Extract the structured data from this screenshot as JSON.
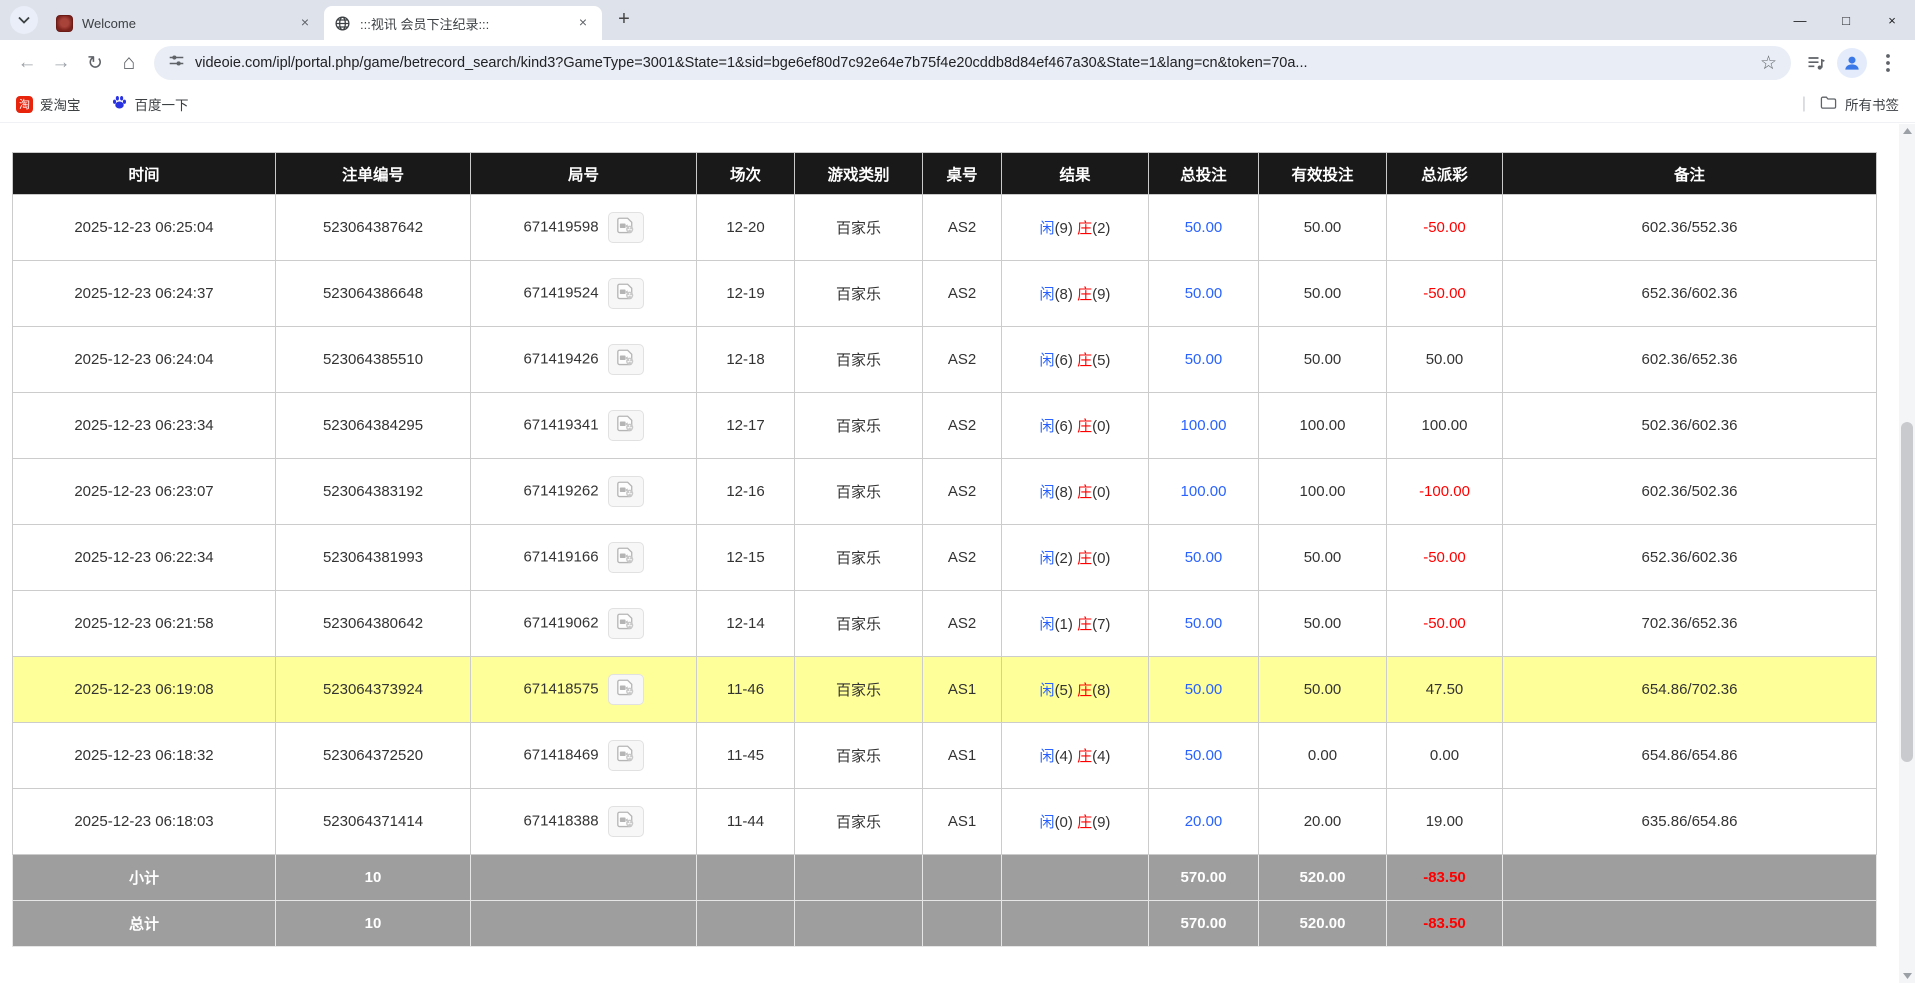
{
  "browser": {
    "tabs": [
      {
        "title": "Welcome"
      },
      {
        "title": ":::视讯 会员下注纪录:::"
      }
    ],
    "url": "videoie.com/ipl/portal.php/game/betrecord_search/kind3?GameType=3001&State=1&sid=bge6ef80d7c92e64e7b75f4e20cddb8d84ef467a30&State=1&lang=cn&token=70a...",
    "bookmarks": [
      {
        "label": "爱淘宝",
        "favicon_char": "淘"
      },
      {
        "label": "百度一下"
      }
    ],
    "all_bookmarks_label": "所有书签",
    "icons": {
      "back": "←",
      "forward": "→",
      "reload": "↻",
      "home": "⌂",
      "star": "☆",
      "close": "×",
      "new_tab": "+",
      "minimize": "—",
      "maximize": "□",
      "separator": "|"
    }
  },
  "table": {
    "headers": [
      "时间",
      "注单编号",
      "局号",
      "场次",
      "游戏类别",
      "桌号",
      "结果",
      "总投注",
      "有效投注",
      "总派彩",
      "备注"
    ],
    "result_labels": {
      "player": "闲",
      "banker": "庄"
    },
    "rows": [
      {
        "time": "2025-12-23 06:25:04",
        "bet_id": "523064387642",
        "round_id": "671419598",
        "session": "12-20",
        "game": "百家乐",
        "table": "AS2",
        "player_score": "(9)",
        "banker_score": "(2)",
        "total_bet": "50.00",
        "valid_bet": "50.00",
        "payout": "-50.00",
        "note": "602.36/552.36",
        "highlight": false
      },
      {
        "time": "2025-12-23 06:24:37",
        "bet_id": "523064386648",
        "round_id": "671419524",
        "session": "12-19",
        "game": "百家乐",
        "table": "AS2",
        "player_score": "(8)",
        "banker_score": "(9)",
        "total_bet": "50.00",
        "valid_bet": "50.00",
        "payout": "-50.00",
        "note": "652.36/602.36",
        "highlight": false
      },
      {
        "time": "2025-12-23 06:24:04",
        "bet_id": "523064385510",
        "round_id": "671419426",
        "session": "12-18",
        "game": "百家乐",
        "table": "AS2",
        "player_score": "(6)",
        "banker_score": "(5)",
        "total_bet": "50.00",
        "valid_bet": "50.00",
        "payout": "50.00",
        "note": "602.36/652.36",
        "highlight": false
      },
      {
        "time": "2025-12-23 06:23:34",
        "bet_id": "523064384295",
        "round_id": "671419341",
        "session": "12-17",
        "game": "百家乐",
        "table": "AS2",
        "player_score": "(6)",
        "banker_score": "(0)",
        "total_bet": "100.00",
        "valid_bet": "100.00",
        "payout": "100.00",
        "note": "502.36/602.36",
        "highlight": false
      },
      {
        "time": "2025-12-23 06:23:07",
        "bet_id": "523064383192",
        "round_id": "671419262",
        "session": "12-16",
        "game": "百家乐",
        "table": "AS2",
        "player_score": "(8)",
        "banker_score": "(0)",
        "total_bet": "100.00",
        "valid_bet": "100.00",
        "payout": "-100.00",
        "note": "602.36/502.36",
        "highlight": false
      },
      {
        "time": "2025-12-23 06:22:34",
        "bet_id": "523064381993",
        "round_id": "671419166",
        "session": "12-15",
        "game": "百家乐",
        "table": "AS2",
        "player_score": "(2)",
        "banker_score": "(0)",
        "total_bet": "50.00",
        "valid_bet": "50.00",
        "payout": "-50.00",
        "note": "652.36/602.36",
        "highlight": false
      },
      {
        "time": "2025-12-23 06:21:58",
        "bet_id": "523064380642",
        "round_id": "671419062",
        "session": "12-14",
        "game": "百家乐",
        "table": "AS2",
        "player_score": "(1)",
        "banker_score": "(7)",
        "total_bet": "50.00",
        "valid_bet": "50.00",
        "payout": "-50.00",
        "note": "702.36/652.36",
        "highlight": false
      },
      {
        "time": "2025-12-23 06:19:08",
        "bet_id": "523064373924",
        "round_id": "671418575",
        "session": "11-46",
        "game": "百家乐",
        "table": "AS1",
        "player_score": "(5)",
        "banker_score": "(8)",
        "total_bet": "50.00",
        "valid_bet": "50.00",
        "payout": "47.50",
        "note": "654.86/702.36",
        "highlight": true
      },
      {
        "time": "2025-12-23 06:18:32",
        "bet_id": "523064372520",
        "round_id": "671418469",
        "session": "11-45",
        "game": "百家乐",
        "table": "AS1",
        "player_score": "(4)",
        "banker_score": "(4)",
        "total_bet": "50.00",
        "valid_bet": "0.00",
        "payout": "0.00",
        "note": "654.86/654.86",
        "highlight": false
      },
      {
        "time": "2025-12-23 06:18:03",
        "bet_id": "523064371414",
        "round_id": "671418388",
        "session": "11-44",
        "game": "百家乐",
        "table": "AS1",
        "player_score": "(0)",
        "banker_score": "(9)",
        "total_bet": "20.00",
        "valid_bet": "20.00",
        "payout": "19.00",
        "note": "635.86/654.86",
        "highlight": false
      }
    ],
    "footer": [
      {
        "label": "小计",
        "count": "10",
        "total_bet": "570.00",
        "valid_bet": "520.00",
        "payout": "-83.50"
      },
      {
        "label": "总计",
        "count": "10",
        "total_bet": "570.00",
        "valid_bet": "520.00",
        "payout": "-83.50"
      }
    ]
  },
  "colors": {
    "accent_blue": "#2962FF",
    "negative_red": "#FF0000",
    "highlight_yellow": "#FFFF99",
    "header_black": "#191919",
    "footer_gray": "#9E9E9E"
  }
}
